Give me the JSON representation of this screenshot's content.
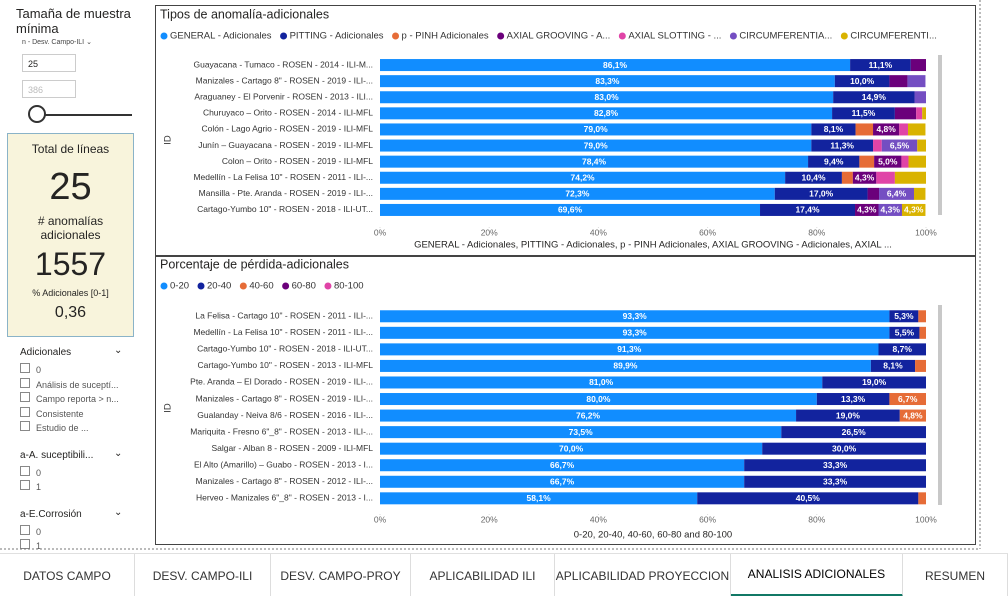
{
  "sidebar": {
    "title": "Tamaña de muestra mínima",
    "dropdown": "n - Desv. Campo-ILI",
    "inputs": [
      "25",
      "386"
    ],
    "card": {
      "title": "Total de líneas",
      "value1": "25",
      "label2": "# anomalías adicionales",
      "value2": "1557",
      "label3": "% Adicionales [0-1]",
      "value3": "0,36"
    },
    "slicers": [
      {
        "title": "Adicionales",
        "items": [
          "0",
          "Análisis de suceptí...",
          "Campo reporta > n...",
          "Consistente",
          "Estudio de ..."
        ]
      },
      {
        "title": "a-A. suceptibili...",
        "items": [
          "0",
          "1"
        ]
      },
      {
        "title": "a-E.Corrosión",
        "items": [
          "0",
          "1"
        ]
      }
    ]
  },
  "charts": [
    {
      "type": "hbar_stacked",
      "title": "Tipos de anomalía-adicionales",
      "y_label": "ID",
      "x_label": "GENERAL - Adicionales, PITTING - Adicionales, p - PINH Adicionales, AXIAL GROOVING - Adicionales, AXIAL ...",
      "categories": [
        "Guayacana - Tumaco - ROSEN - 2014 - ILI-M...",
        "Manizales - Cartago 8\" - ROSEN - 2019 - ILI-...",
        "Araguaney - El Porvenir - ROSEN - 2013 - ILI...",
        "Churuyaco – Orito - ROSEN - 2014 - ILI-MFL",
        "Colón - Lago Agrio - ROSEN - 2019 - ILI-MFL",
        "Junín – Guayacana - ROSEN - 2019 - ILI-MFL",
        "Colon – Orito - ROSEN - 2019 - ILI-MFL",
        "Medellín - La Felisa 10\" - ROSEN - 2011 - ILI-...",
        "Mansilla - Pte. Aranda - ROSEN - 2019 - ILI-...",
        "Cartago-Yumbo 10\" - ROSEN - 2018 - ILI-UT..."
      ],
      "xlim": [
        0,
        100
      ],
      "xticks": [
        {
          "value": 0,
          "label": "0%"
        },
        {
          "value": 20,
          "label": "20%"
        },
        {
          "value": 40,
          "label": "40%"
        },
        {
          "value": 60,
          "label": "60%"
        },
        {
          "value": 80,
          "label": "80%"
        },
        {
          "value": 100,
          "label": "100%"
        }
      ],
      "series": [
        {
          "name": "GENERAL - Adicionales",
          "color": "#118DFF",
          "values": [
            86.1,
            83.3,
            83.0,
            82.8,
            79.0,
            79.0,
            78.4,
            74.2,
            72.3,
            69.6
          ],
          "value_labels": [
            "86,1%",
            "83,3%",
            "83,0%",
            "82,8%",
            "79,0%",
            "79,0%",
            "78,4%",
            "74,2%",
            "72,3%",
            "69,6%"
          ]
        },
        {
          "name": "PITTING - Adicionales",
          "color": "#12239E",
          "values": [
            11.1,
            10.0,
            14.9,
            11.5,
            8.1,
            11.3,
            9.4,
            10.4,
            17.0,
            17.4
          ],
          "value_labels": [
            "11,1%",
            "10,0%",
            "14,9%",
            "11,5%",
            "8,1%",
            "11,3%",
            "9,4%",
            "10,4%",
            "17,0%",
            "17,4%"
          ]
        },
        {
          "name": "p - PINH Adicionales",
          "color": "#E66C37",
          "values": [
            null,
            null,
            null,
            null,
            3.2,
            null,
            2.7,
            2.0,
            null,
            null
          ],
          "value_labels": [
            null,
            null,
            null,
            null,
            null,
            null,
            null,
            null,
            null,
            null
          ]
        },
        {
          "name": "AXIAL GROOVING - A...",
          "color": "#6B007B",
          "values": [
            2.8,
            3.3,
            null,
            3.9,
            4.8,
            null,
            5.0,
            4.3,
            2.1,
            4.3
          ],
          "value_labels": [
            null,
            null,
            null,
            null,
            "4,8%",
            null,
            "5,0%",
            "4,3%",
            null,
            "4,3%"
          ]
        },
        {
          "name": "AXIAL SLOTTING - ...",
          "color": "#E044A7",
          "values": [
            null,
            null,
            null,
            1.1,
            1.6,
            1.6,
            1.3,
            3.4,
            null,
            null
          ],
          "value_labels": [
            null,
            null,
            null,
            null,
            null,
            null,
            null,
            null,
            null,
            null
          ]
        },
        {
          "name": "CIRCUMFERENTIA...",
          "color": "#744EC2",
          "values": [
            null,
            3.3,
            2.1,
            null,
            null,
            6.5,
            null,
            null,
            6.4,
            4.3
          ],
          "value_labels": [
            null,
            null,
            null,
            null,
            null,
            "6,5%",
            null,
            null,
            "6,4%",
            "4,3%"
          ]
        },
        {
          "name": "CIRCUMFERENTI...",
          "color": "#D9B300",
          "values": [
            null,
            null,
            null,
            0.7,
            3.2,
            1.6,
            3.2,
            5.7,
            2.1,
            4.3
          ],
          "value_labels": [
            null,
            null,
            null,
            null,
            null,
            null,
            null,
            null,
            null,
            "4,3%"
          ]
        }
      ]
    },
    {
      "type": "hbar_stacked",
      "title": "Porcentaje de pérdida-adicionales",
      "y_label": "ID",
      "x_label": "0-20, 20-40, 40-60, 60-80 and 80-100",
      "categories": [
        "La Felisa - Cartago 10\" - ROSEN - 2011 - ILI-...",
        "Medellín - La Felisa 10\" - ROSEN - 2011 - ILI-...",
        "Cartago-Yumbo 10\" - ROSEN - 2018 - ILI-UT...",
        "Cartago-Yumbo 10\" - ROSEN - 2013 - ILI-MFL",
        "Pte. Aranda – El Dorado - ROSEN - 2019 - ILI-...",
        "Manizales - Cartago 8\" - ROSEN - 2019 - ILI-...",
        "Gualanday - Neiva 8/6 - ROSEN - 2016 - ILI-...",
        "Mariquita - Fresno 6\"_8\" - ROSEN - 2013 - ILI-...",
        "Salgar - Alban 8 - ROSEN - 2009 - ILI-MFL",
        "El Alto (Amarillo) – Guabo - ROSEN - 2013 - I...",
        "Manizales - Cartago 8\" - ROSEN - 2012 - ILI-...",
        "Herveo - Manizales 6\"_8\" - ROSEN - 2013 - I..."
      ],
      "xlim": [
        0,
        100
      ],
      "xticks": [
        {
          "value": 0,
          "label": "0%"
        },
        {
          "value": 20,
          "label": "20%"
        },
        {
          "value": 40,
          "label": "40%"
        },
        {
          "value": 60,
          "label": "60%"
        },
        {
          "value": 80,
          "label": "80%"
        },
        {
          "value": 100,
          "label": "100%"
        }
      ],
      "series": [
        {
          "name": "0-20",
          "color": "#118DFF",
          "values": [
            93.3,
            93.3,
            91.3,
            89.9,
            81.0,
            80.0,
            76.2,
            73.5,
            70.0,
            66.7,
            66.7,
            58.1
          ],
          "value_labels": [
            "93,3%",
            "93,3%",
            "91,3%",
            "89,9%",
            "81,0%",
            "80,0%",
            "76,2%",
            "73,5%",
            "70,0%",
            "66,7%",
            "66,7%",
            "58,1%"
          ]
        },
        {
          "name": "20-40",
          "color": "#12239E",
          "values": [
            5.3,
            5.5,
            8.7,
            8.1,
            19.0,
            13.3,
            19.0,
            26.5,
            30.0,
            33.3,
            33.3,
            40.5
          ],
          "value_labels": [
            "5,3%",
            "5,5%",
            "8,7%",
            "8,1%",
            "19,0%",
            "13,3%",
            "19,0%",
            "26,5%",
            "30,0%",
            "33,3%",
            "33,3%",
            "40,5%"
          ]
        },
        {
          "name": "40-60",
          "color": "#E66C37",
          "values": [
            1.4,
            1.2,
            null,
            2.0,
            null,
            6.7,
            4.8,
            null,
            null,
            null,
            null,
            1.4
          ],
          "value_labels": [
            null,
            null,
            null,
            null,
            null,
            "6,7%",
            "4,8%",
            null,
            null,
            null,
            null,
            null
          ]
        },
        {
          "name": "60-80",
          "color": "#6B007B",
          "values": [
            null,
            null,
            null,
            null,
            null,
            null,
            null,
            null,
            null,
            null,
            null,
            null
          ],
          "value_labels": [
            null,
            null,
            null,
            null,
            null,
            null,
            null,
            null,
            null,
            null,
            null,
            null
          ]
        },
        {
          "name": "80-100",
          "color": "#E044A7",
          "values": [
            null,
            null,
            null,
            null,
            null,
            null,
            null,
            null,
            null,
            null,
            null,
            null
          ],
          "value_labels": [
            null,
            null,
            null,
            null,
            null,
            null,
            null,
            null,
            null,
            null,
            null,
            null
          ]
        }
      ]
    }
  ],
  "tabs": [
    "DATOS CAMPO",
    "DESV. CAMPO-ILI",
    "DESV. CAMPO-PROY",
    "APLICABILIDAD ILI",
    "APLICABILIDAD PROYECCION",
    "ANALISIS ADICIONALES",
    "RESUMEN"
  ],
  "active_tab": 5
}
